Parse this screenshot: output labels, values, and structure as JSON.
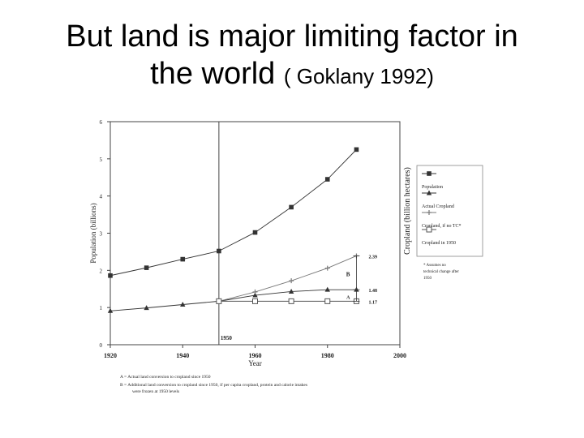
{
  "slide": {
    "title_line1": "But land is  major limiting factor in",
    "title_line2": "the world",
    "citation": "( Goklany 1992)"
  },
  "chart_data": {
    "type": "line",
    "xlabel": "Year",
    "ylabel_left": "Population (billions)",
    "ylabel_right": "Cropland (billion hectares)",
    "x_ticks": [
      1920,
      1940,
      1960,
      1980,
      2000
    ],
    "y_ticks": [
      0,
      1,
      2,
      3,
      4,
      5,
      6
    ],
    "xlim": [
      1920,
      2000
    ],
    "ylim": [
      0,
      6
    ],
    "series": [
      {
        "name": "Population",
        "marker": "filled-square",
        "color": "#333333",
        "x": [
          1920,
          1930,
          1940,
          1950,
          1960,
          1970,
          1980,
          1988
        ],
        "y": [
          1.86,
          2.07,
          2.3,
          2.52,
          3.02,
          3.7,
          4.45,
          5.25
        ]
      },
      {
        "name": "Actual Cropland",
        "marker": "filled-triangle",
        "color": "#333333",
        "x": [
          1920,
          1930,
          1940,
          1950,
          1960,
          1970,
          1980,
          1988
        ],
        "y": [
          0.91,
          0.99,
          1.08,
          1.17,
          1.33,
          1.43,
          1.48,
          1.48
        ]
      },
      {
        "name": "Cropland, if no TC*",
        "marker": "plus",
        "color": "#777777",
        "x": [
          1950,
          1960,
          1970,
          1980,
          1988
        ],
        "y": [
          1.17,
          1.42,
          1.72,
          2.06,
          2.39
        ]
      },
      {
        "name": "Cropland in 1950",
        "marker": "open-square",
        "color": "#555555",
        "x": [
          1950,
          1960,
          1970,
          1980,
          1988
        ],
        "y": [
          1.17,
          1.17,
          1.17,
          1.17,
          1.17
        ]
      }
    ],
    "annotations": {
      "vline_label": "1950",
      "value_labels": [
        "2.39",
        "1.48",
        "1.17"
      ],
      "bracket_labels": [
        "B",
        "A"
      ]
    },
    "legend_note": "* Assumes no technical change after 1950",
    "footnotes": [
      "A = Actual land conversion to cropland since 1950",
      "B = Additional land conversion to cropland since 1950, if per capita cropland, protein and calorie intakes",
      "were frozen at 1950 levels"
    ]
  }
}
